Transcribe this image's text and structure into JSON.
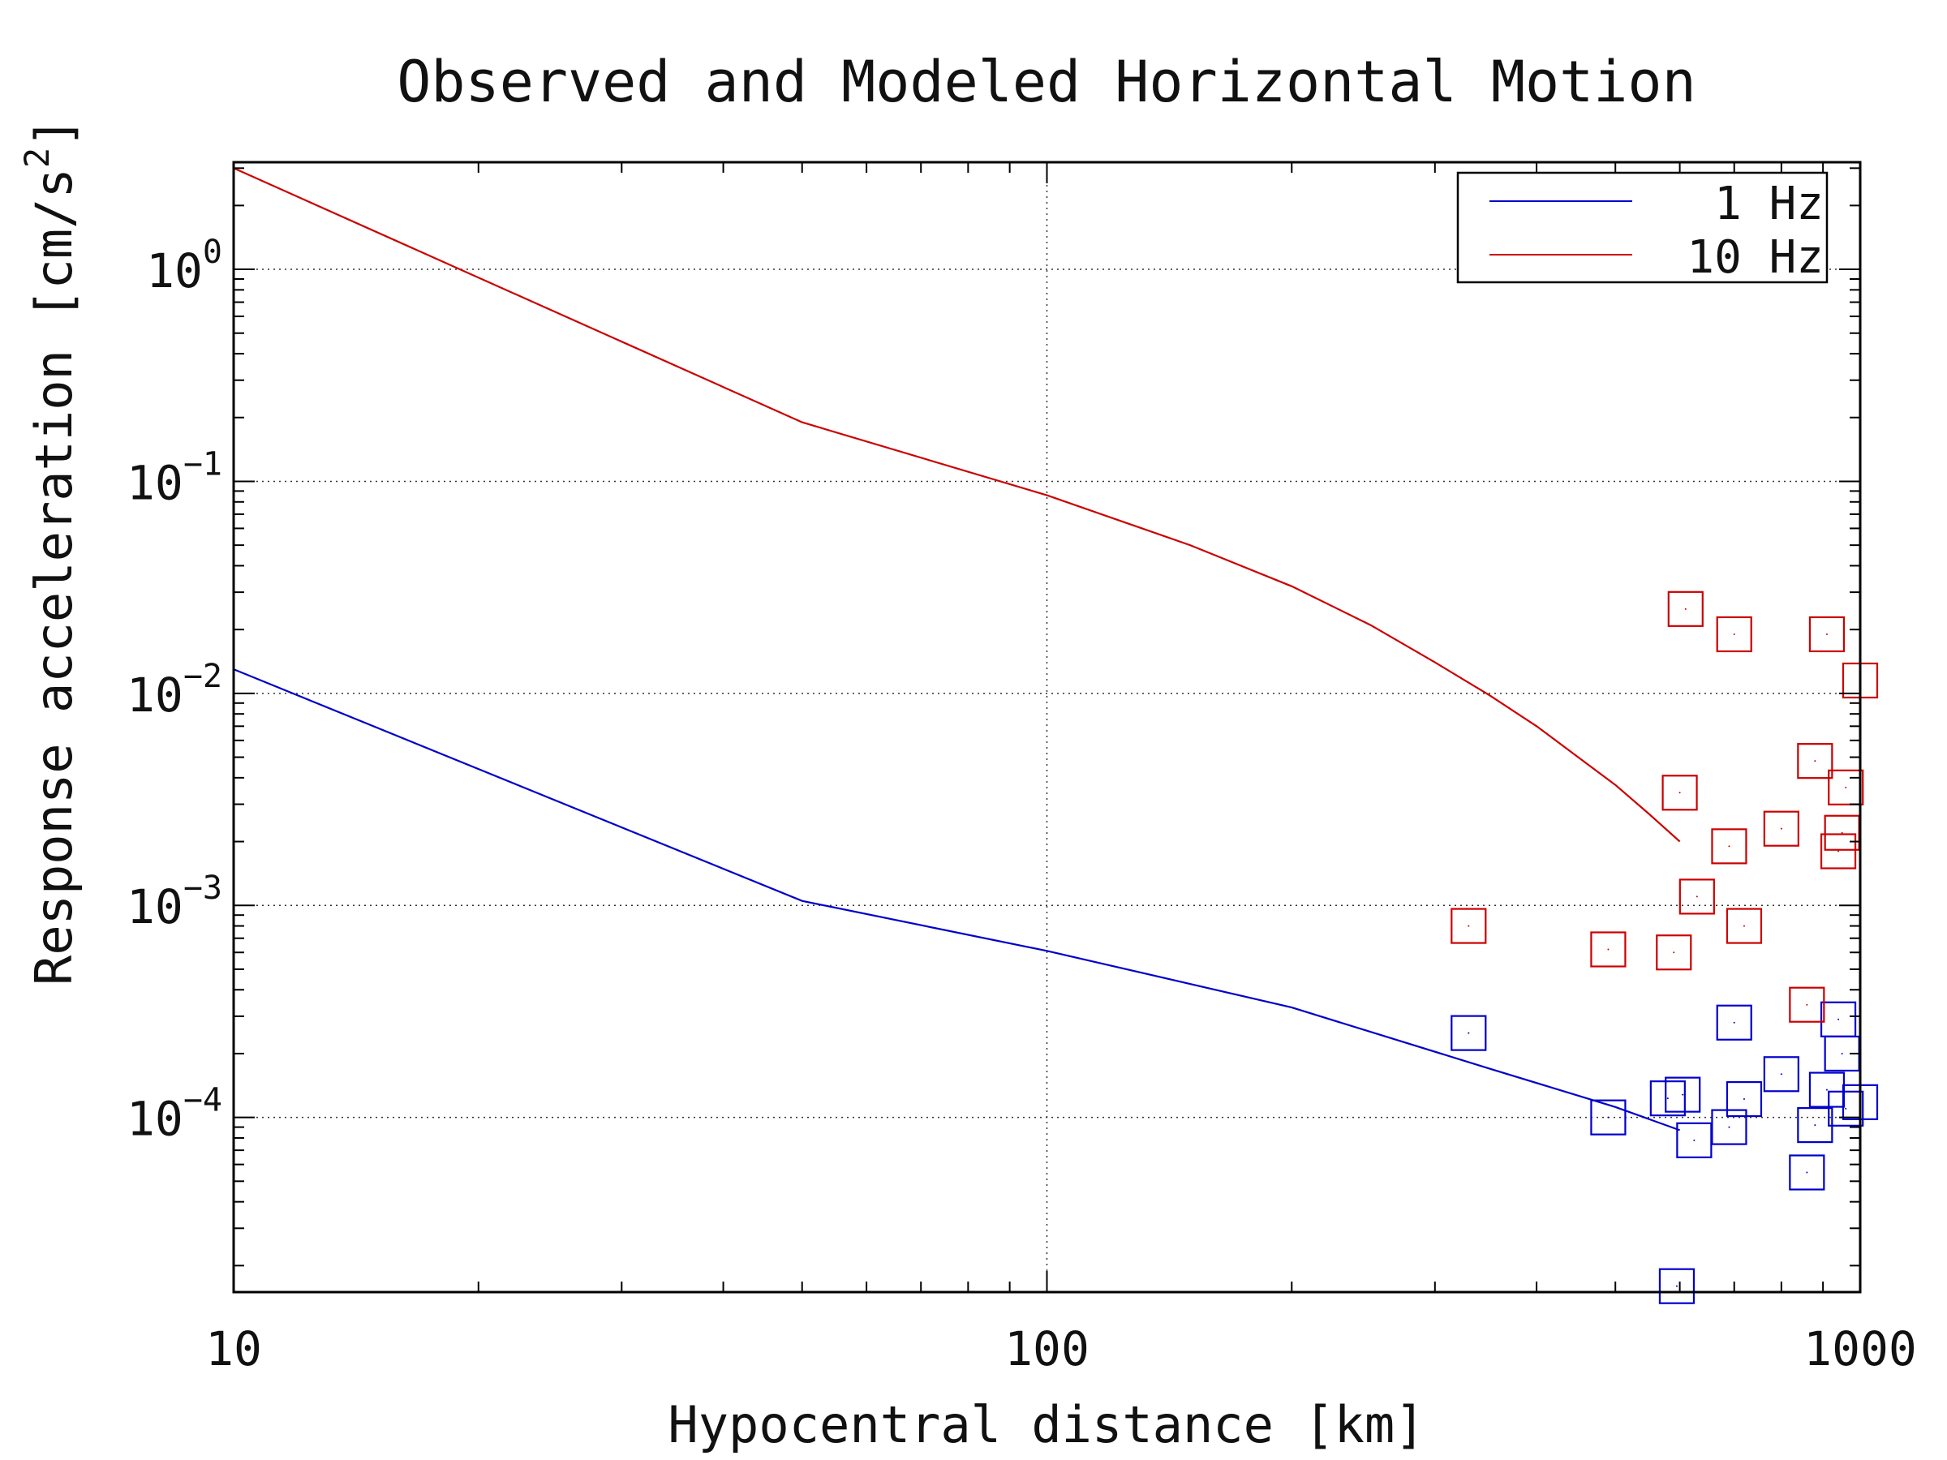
{
  "chart_data": {
    "type": "line+scatter",
    "title": "Observed and Modeled Horizontal Motion",
    "xlabel": "Hypocentral distance [km]",
    "ylabel_main": "Response acceleration [cm/s",
    "ylabel_sup": "2",
    "ylabel_tail": "]",
    "xscale": "log",
    "yscale": "log",
    "xlim": [
      10,
      1000
    ],
    "ylim": [
      1.5e-05,
      3.2
    ],
    "x_ticks": [
      {
        "value": 10,
        "label": "10"
      },
      {
        "value": 100,
        "label": "100"
      },
      {
        "value": 1000,
        "label": "1000"
      }
    ],
    "y_ticks": [
      {
        "value": 1,
        "base": "10",
        "exp": "0"
      },
      {
        "value": 0.1,
        "base": "10",
        "exp": "−1"
      },
      {
        "value": 0.01,
        "base": "10",
        "exp": "−2"
      },
      {
        "value": 0.001,
        "base": "10",
        "exp": "−3"
      },
      {
        "value": 0.0001,
        "base": "10",
        "exp": "−4"
      }
    ],
    "grid": "dotted at major ticks",
    "legend_position": "top-right",
    "legend": [
      {
        "label": "1 Hz",
        "color": "#0000cc"
      },
      {
        "label": "10 Hz",
        "color": "#cc0000"
      }
    ],
    "series": [
      {
        "name": "1 Hz",
        "color": "#0000cc",
        "model": [
          [
            10,
            0.013
          ],
          [
            50,
            0.00105
          ],
          [
            100,
            0.00061
          ],
          [
            200,
            0.00033
          ],
          [
            350,
            0.00017
          ],
          [
            500,
            0.000112
          ],
          [
            600,
            8.7e-05
          ]
        ],
        "observed": [
          [
            330,
            0.00025
          ],
          [
            490,
            0.0001
          ],
          [
            580,
            0.000123
          ],
          [
            595,
            1.6e-05
          ],
          [
            605,
            0.000128
          ],
          [
            625,
            7.8e-05
          ],
          [
            690,
            9e-05
          ],
          [
            700,
            0.00028
          ],
          [
            720,
            0.000122
          ],
          [
            800,
            0.00016
          ],
          [
            860,
            5.5e-05
          ],
          [
            880,
            9.2e-05
          ],
          [
            910,
            0.000135
          ],
          [
            940,
            0.00029
          ],
          [
            950,
            0.0002
          ],
          [
            960,
            0.00011
          ],
          [
            1000,
            0.000118
          ]
        ]
      },
      {
        "name": "10 Hz",
        "color": "#cc0000",
        "model": [
          [
            10,
            3
          ],
          [
            50,
            0.19
          ],
          [
            100,
            0.086
          ],
          [
            150,
            0.05
          ],
          [
            200,
            0.032
          ],
          [
            250,
            0.021
          ],
          [
            300,
            0.014
          ],
          [
            350,
            0.0098
          ],
          [
            400,
            0.007
          ],
          [
            450,
            0.005
          ],
          [
            500,
            0.0037
          ],
          [
            550,
            0.0027
          ],
          [
            600,
            0.002
          ]
        ],
        "observed": [
          [
            330,
            0.0008
          ],
          [
            490,
            0.00062
          ],
          [
            590,
            0.0006
          ],
          [
            600,
            0.0034
          ],
          [
            610,
            0.025
          ],
          [
            630,
            0.0011
          ],
          [
            690,
            0.0019
          ],
          [
            700,
            0.019
          ],
          [
            720,
            0.0008
          ],
          [
            800,
            0.0023
          ],
          [
            860,
            0.00034
          ],
          [
            880,
            0.0048
          ],
          [
            910,
            0.019
          ],
          [
            940,
            0.0018
          ],
          [
            950,
            0.0022
          ],
          [
            960,
            0.0036
          ],
          [
            1000,
            0.0115
          ]
        ]
      }
    ]
  }
}
